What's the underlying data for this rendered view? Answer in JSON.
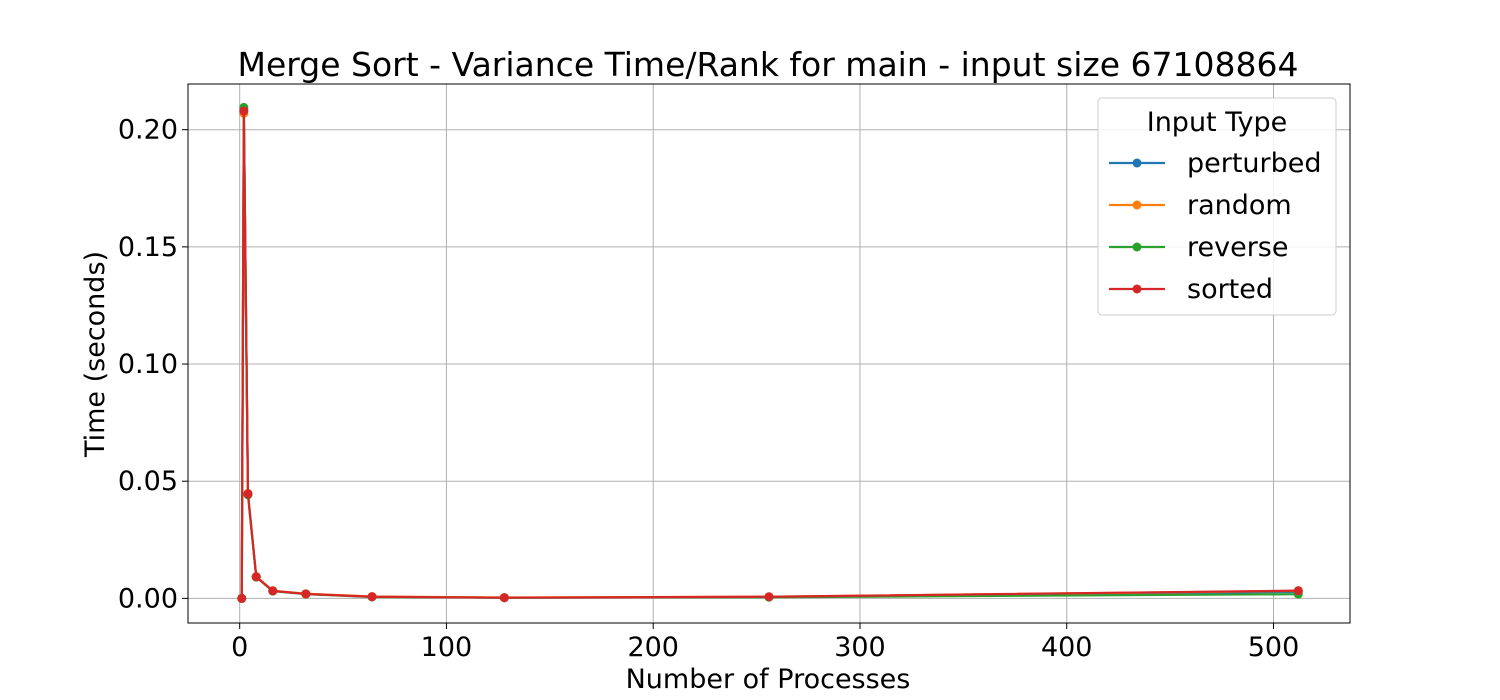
{
  "chart_data": {
    "type": "line",
    "title": "Merge Sort - Variance Time/Rank for main - input size 67108864",
    "xlabel": "Number of Processes",
    "ylabel": "Time (seconds)",
    "xlim": [
      -25,
      537
    ],
    "ylim": [
      -0.0105,
      0.2195
    ],
    "xticks": [
      0,
      100,
      200,
      300,
      400,
      500
    ],
    "xtick_labels": [
      "0",
      "100",
      "200",
      "300",
      "400",
      "500"
    ],
    "yticks": [
      0.0,
      0.05,
      0.1,
      0.15,
      0.2
    ],
    "ytick_labels": [
      "0.00",
      "0.05",
      "0.10",
      "0.15",
      "0.20"
    ],
    "grid": true,
    "legend": {
      "title": "Input Type",
      "position": "top-right"
    },
    "x": [
      1,
      2,
      4,
      8,
      16,
      32,
      64,
      128,
      256,
      512
    ],
    "series": [
      {
        "name": "perturbed",
        "color": "#1f77b4",
        "values": [
          0.0,
          0.2085,
          0.0445,
          0.0092,
          0.0032,
          0.0019,
          0.0007,
          0.0003,
          0.0006,
          0.0028
        ]
      },
      {
        "name": "random",
        "color": "#ff7f0e",
        "values": [
          0.0,
          0.207,
          0.0448,
          0.0093,
          0.0033,
          0.002,
          0.0008,
          0.0004,
          0.0007,
          0.0032
        ]
      },
      {
        "name": "reverse",
        "color": "#2ca02c",
        "values": [
          0.0,
          0.2095,
          0.0442,
          0.0091,
          0.0031,
          0.0018,
          0.0006,
          0.0003,
          0.0005,
          0.0018
        ]
      },
      {
        "name": "sorted",
        "color": "#d62728",
        "values": [
          0.0,
          0.208,
          0.0446,
          0.0092,
          0.0032,
          0.0019,
          0.0007,
          0.0003,
          0.0007,
          0.0033
        ]
      }
    ]
  }
}
